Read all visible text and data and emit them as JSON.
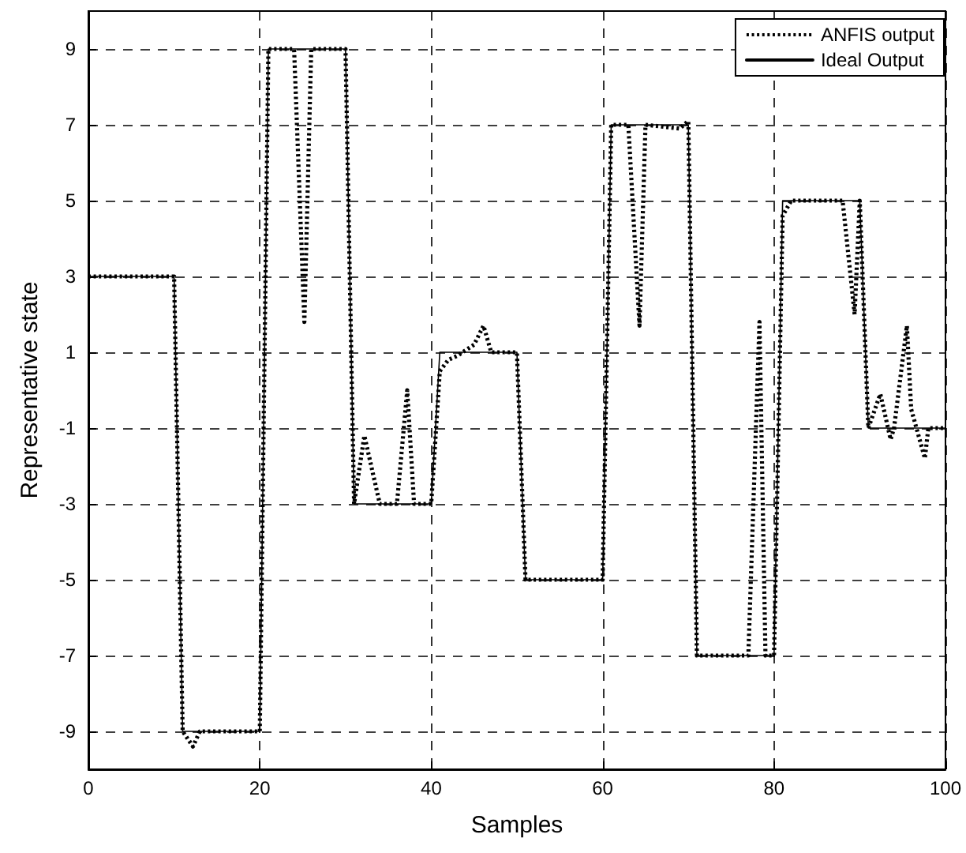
{
  "chart_data": {
    "type": "line",
    "xlabel": "Samples",
    "ylabel": "Representative state",
    "xlim": [
      0,
      100
    ],
    "xticks": [
      0,
      20,
      40,
      60,
      80,
      100
    ],
    "ylim": [
      -10,
      10
    ],
    "yticks": [
      -9,
      -7,
      -5,
      -3,
      -1,
      1,
      3,
      5,
      7,
      9
    ],
    "grid": true,
    "legend": "top right",
    "series": [
      {
        "name": "ANFIS output",
        "color": "#000000",
        "line_style": "dotted",
        "x": [
          0,
          10,
          11,
          12.2,
          13,
          20,
          21,
          24,
          25.2,
          26,
          30,
          31,
          32.2,
          34,
          36,
          37.2,
          38,
          40,
          41,
          42,
          43,
          45,
          46.1,
          47,
          50,
          51,
          60,
          61,
          63,
          64.3,
          65,
          69,
          70,
          71,
          77,
          78.3,
          79,
          80,
          81,
          82,
          88,
          89.4,
          90,
          91,
          92.4,
          93.6,
          94,
          95.5,
          96,
          97.6,
          98,
          100
        ],
        "values": [
          3,
          3,
          -9,
          -9.4,
          -9,
          -9,
          9,
          9,
          1.8,
          9,
          9,
          -3,
          -1.2,
          -3,
          -3,
          0,
          -3,
          -3,
          0.5,
          0.8,
          0.9,
          1.2,
          1.7,
          1,
          1,
          -5,
          -5,
          7,
          7,
          1.7,
          7,
          6.9,
          7.1,
          -7,
          -7,
          1.8,
          -7,
          -7,
          4.6,
          5,
          5,
          2,
          5,
          -1,
          -0.1,
          -1.3,
          -1,
          1.7,
          -0.5,
          -1.8,
          -1,
          -1
        ]
      },
      {
        "name": "Ideal Output",
        "color": "#000000",
        "line_style": "solid",
        "x": [
          0,
          10,
          11,
          20,
          21,
          30,
          31,
          40,
          41,
          50,
          51,
          60,
          61,
          70,
          71,
          80,
          81,
          90,
          91,
          100
        ],
        "values": [
          3,
          3,
          -9,
          -9,
          9,
          9,
          -3,
          -3,
          1,
          1,
          -5,
          -5,
          7,
          7,
          -7,
          -7,
          5,
          5,
          -1,
          -1
        ]
      }
    ]
  }
}
